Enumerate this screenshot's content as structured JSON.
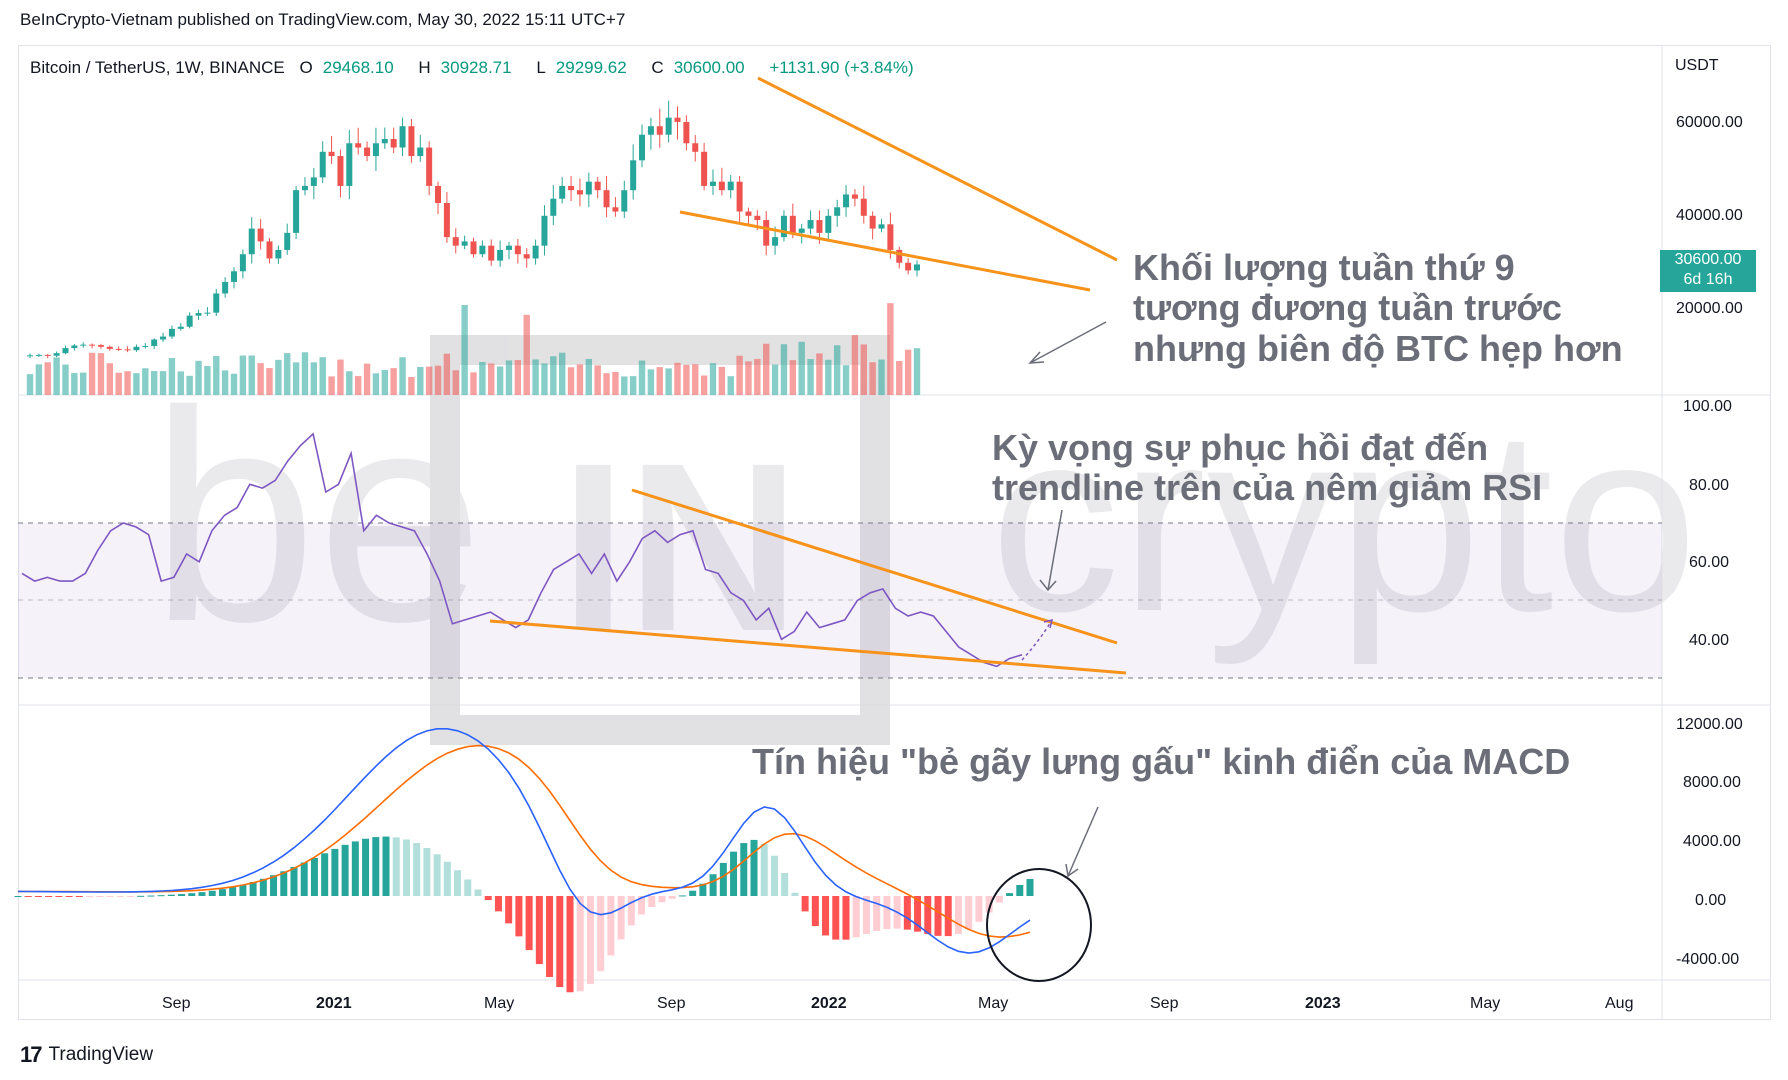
{
  "header": {
    "publisher": "BeInCrypto-Vietnam published on TradingView.com, May 30, 2022 15:11 UTC+7"
  },
  "symbol": {
    "name": "Bitcoin / TetherUS, 1W, BINANCE",
    "open_label": "O",
    "open": "29468.10",
    "high_label": "H",
    "high": "30928.71",
    "low_label": "L",
    "low": "29299.62",
    "close_label": "C",
    "close": "30600.00",
    "change": "+1131.90 (+3.84%)"
  },
  "price_axis": {
    "unit": "USDT",
    "ticks": [
      "60000.00",
      "40000.00",
      "20000.00"
    ]
  },
  "price_tag": {
    "price": "30600.00",
    "countdown": "6d 16h"
  },
  "rsi_axis": {
    "ticks": [
      "100.00",
      "80.00",
      "60.00",
      "40.00"
    ]
  },
  "macd_axis": {
    "ticks": [
      "12000.00",
      "8000.00",
      "4000.00",
      "0.00",
      "-4000.00"
    ]
  },
  "time_axis": {
    "ticks": [
      "Sep",
      "2021",
      "May",
      "Sep",
      "2022",
      "May",
      "Sep",
      "2023",
      "May",
      "Aug"
    ]
  },
  "annotations": {
    "volume_note_1": "Khối lượng tuần thứ 9",
    "volume_note_2": "tương đương tuần trước",
    "volume_note_3": "nhưng biên độ BTC hẹp hơn",
    "rsi_note_1": "Kỳ vọng sự phục hồi đạt đến",
    "rsi_note_2": "trendline trên của nêm giảm RSI",
    "macd_note": "Tín hiệu \"bẻ gãy lưng gấu\" kinh điển của MACD"
  },
  "watermark": {
    "left": "be",
    "center": "IN",
    "right": "crypto"
  },
  "footer": {
    "brand": "TradingView"
  },
  "colors": {
    "up": "#26a69a",
    "down": "#ef5350",
    "rsi": "#7e57c2",
    "macd": "#2962ff",
    "signal": "#ff6d00",
    "trend": "#f7931a"
  },
  "chart_data": {
    "type": "candlestick",
    "title": "Bitcoin / TetherUS, 1W, BINANCE",
    "x_range": [
      "2020-06",
      "2023-09"
    ],
    "price_ylim": [
      0,
      75000
    ],
    "price_weekly_close": [
      9300,
      9400,
      9200,
      9800,
      11000,
      11600,
      11800,
      11700,
      11300,
      10800,
      10700,
      10500,
      11300,
      11500,
      13000,
      13700,
      15500,
      16000,
      18600,
      19200,
      19300,
      23800,
      26500,
      29000,
      33000,
      39000,
      36000,
      32000,
      34000,
      38000,
      48000,
      49000,
      51000,
      57000,
      56000,
      49000,
      59000,
      58000,
      56000,
      59000,
      60000,
      58000,
      63000,
      56000,
      58000,
      49000,
      45000,
      37000,
      35000,
      36000,
      33000,
      35000,
      31500,
      34000,
      35000,
      33000,
      32000,
      35000,
      42000,
      46000,
      49000,
      48000,
      47000,
      50000,
      48000,
      44000,
      43000,
      48000,
      55000,
      61000,
      63000,
      61000,
      65000,
      64000,
      59000,
      57000,
      49000,
      50000,
      48000,
      50000,
      43000,
      42000,
      41000,
      35000,
      37000,
      42000,
      38000,
      39000,
      41000,
      38000,
      42000,
      44000,
      47000,
      46000,
      42000,
      39000,
      40000,
      34000,
      31000,
      29200,
      30600
    ],
    "rsi_range": [
      30,
      70
    ],
    "rsi": [
      57,
      55,
      56,
      55,
      55,
      57,
      63,
      68,
      70,
      69,
      67,
      55,
      56,
      62,
      60,
      68,
      72,
      74,
      80,
      79,
      81,
      86,
      90,
      93,
      78,
      80,
      88,
      68,
      72,
      70,
      69,
      68,
      62,
      55,
      44,
      45,
      46,
      47,
      45,
      43,
      45,
      52,
      58,
      60,
      62,
      57,
      62,
      55,
      60,
      66,
      68,
      65,
      67,
      68,
      58,
      57,
      52,
      50,
      45,
      48,
      40,
      42,
      47,
      43,
      44,
      45,
      50,
      52,
      53,
      48,
      46,
      47,
      46,
      42,
      38,
      36,
      34,
      33,
      35,
      36
    ],
    "macd_ylim": [
      -4000,
      12000
    ],
    "macd_range": [
      -4000,
      11500
    ],
    "series": [
      {
        "name": "MACD"
      },
      {
        "name": "Signal"
      },
      {
        "name": "Histogram"
      }
    ]
  }
}
